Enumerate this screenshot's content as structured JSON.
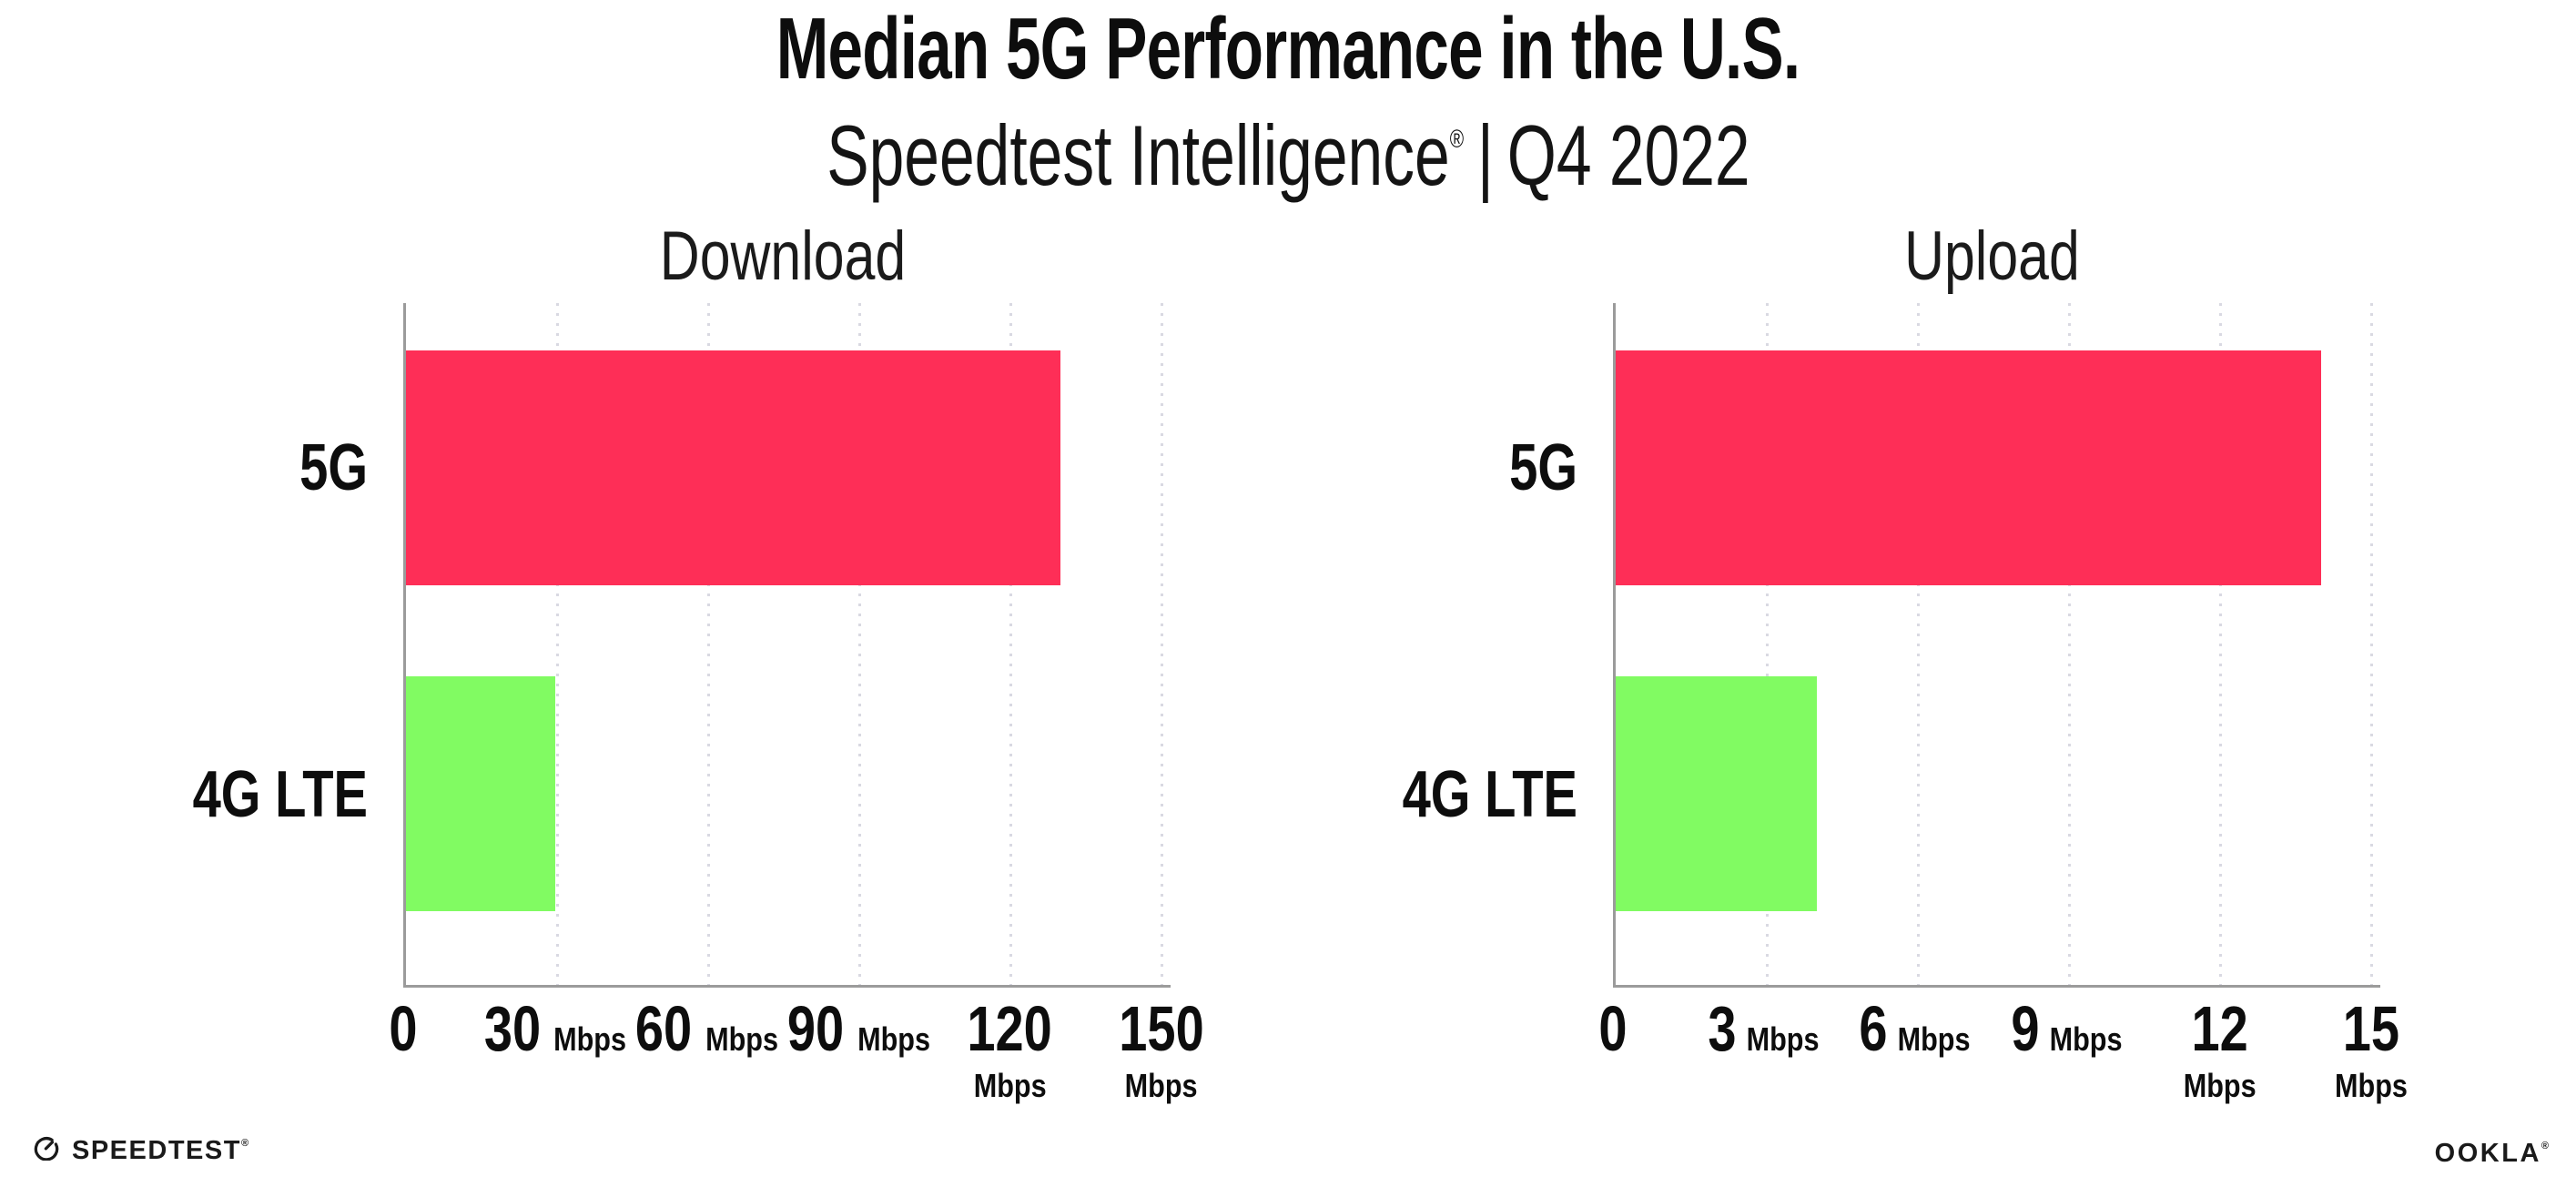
{
  "header": {
    "title": "Median 5G Performance in the U.S.",
    "subtitle_brand": "Speedtest Intelligence",
    "subtitle_reg": "®",
    "subtitle_sep": "|",
    "subtitle_period": "Q4 2022"
  },
  "footer": {
    "speedtest_label": "SPEEDTEST",
    "speedtest_reg": "®",
    "ookla_label": "OOKLA",
    "ookla_reg": "®"
  },
  "colors": {
    "bar_5g": "#fe2e57",
    "bar_4g_lte": "#81fb62",
    "axis": "#9b9b9b",
    "gridline": "#d9d9e2",
    "text": "#0d0d0d"
  },
  "chart_data": [
    {
      "type": "bar",
      "orientation": "horizontal",
      "title": "Download",
      "categories": [
        "5G",
        "4G LTE"
      ],
      "values": [
        130,
        29.7
      ],
      "unit": "Mbps",
      "xlim": [
        0,
        150
      ],
      "xticks": [
        0,
        30,
        60,
        90,
        120,
        150
      ],
      "grid": "dotted vertical gridlines at each tick, no gridline at 0",
      "legend": "none",
      "bar_colors": [
        "#fe2e57",
        "#81fb62"
      ]
    },
    {
      "type": "bar",
      "orientation": "horizontal",
      "title": "Upload",
      "categories": [
        "5G",
        "4G LTE"
      ],
      "values": [
        14,
        4
      ],
      "unit": "Mbps",
      "xlim": [
        0,
        15
      ],
      "xticks": [
        0,
        3,
        6,
        9,
        12,
        15
      ],
      "grid": "dotted vertical gridlines at each tick, no gridline at 0",
      "legend": "none",
      "bar_colors": [
        "#fe2e57",
        "#81fb62"
      ]
    }
  ]
}
